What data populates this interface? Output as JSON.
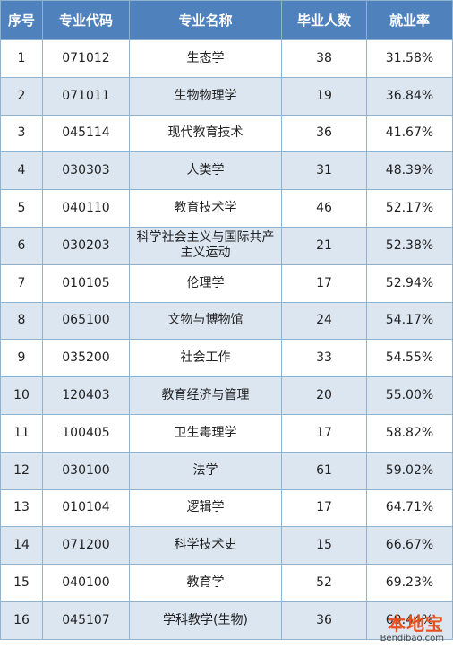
{
  "table": {
    "headers": [
      "序号",
      "专业代码",
      "专业名称",
      "毕业人数",
      "就业率"
    ],
    "rows": [
      [
        "1",
        "071012",
        "生态学",
        "38",
        "31.58%"
      ],
      [
        "2",
        "071011",
        "生物物理学",
        "19",
        "36.84%"
      ],
      [
        "3",
        "045114",
        "现代教育技术",
        "36",
        "41.67%"
      ],
      [
        "4",
        "030303",
        "人类学",
        "31",
        "48.39%"
      ],
      [
        "5",
        "040110",
        "教育技术学",
        "46",
        "52.17%"
      ],
      [
        "6",
        "030203",
        "科学社会主义与国际共产主义运动",
        "21",
        "52.38%"
      ],
      [
        "7",
        "010105",
        "伦理学",
        "17",
        "52.94%"
      ],
      [
        "8",
        "065100",
        "文物与博物馆",
        "24",
        "54.17%"
      ],
      [
        "9",
        "035200",
        "社会工作",
        "33",
        "54.55%"
      ],
      [
        "10",
        "120403",
        "教育经济与管理",
        "20",
        "55.00%"
      ],
      [
        "11",
        "100405",
        "卫生毒理学",
        "17",
        "58.82%"
      ],
      [
        "12",
        "030100",
        "法学",
        "61",
        "59.02%"
      ],
      [
        "13",
        "010104",
        "逻辑学",
        "17",
        "64.71%"
      ],
      [
        "14",
        "071200",
        "科学技术史",
        "15",
        "66.67%"
      ],
      [
        "15",
        "040100",
        "教育学",
        "52",
        "69.23%"
      ],
      [
        "16",
        "045107",
        "学科教学(生物)",
        "36",
        "69.44%"
      ]
    ]
  },
  "watermark": {
    "logo": "本地宝",
    "url": "Bendibao.com"
  },
  "colors": {
    "header_bg": "#4f81bd",
    "stripe_bg": "#dce6f1",
    "border": "#8fb3cf",
    "watermark": "#e8511f"
  }
}
